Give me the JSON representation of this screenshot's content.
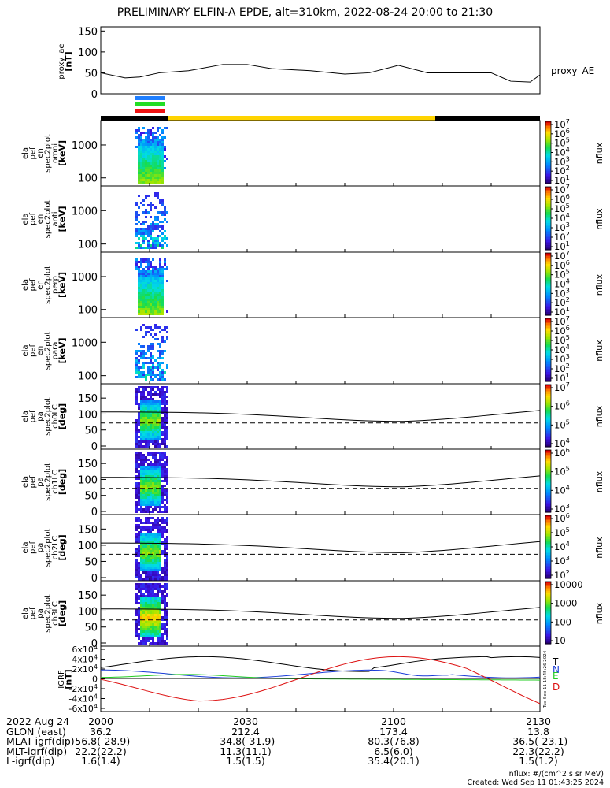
{
  "title": "PRELIMINARY ELFIN-A EPDE, alt=310km, 2022-08-24 20:00 to 21:30",
  "colors": {
    "bar_black": "#000000",
    "bar_yellow": "#ffd400",
    "ind_blue": "#1f7fff",
    "ind_green": "#22dd22",
    "ind_red": "#ee1111",
    "grf_T": "#000000",
    "grf_N": "#1a3cd8",
    "grf_E": "#22cc22",
    "grf_D": "#dd1111"
  },
  "chart_data": [
    {
      "type": "line",
      "name": "proxy_ae",
      "ylabel": [
        "proxy_ae",
        "[nT]"
      ],
      "yticks": [
        "0",
        "50",
        "100",
        "150"
      ],
      "ylim": [
        0,
        160
      ],
      "legend": "proxy_AE",
      "x_minutes": [
        0,
        5,
        8,
        12,
        18,
        25,
        30,
        35,
        43,
        50,
        55,
        61,
        67,
        72,
        80,
        84,
        88,
        90
      ],
      "y": [
        50,
        38,
        40,
        50,
        55,
        70,
        70,
        60,
        55,
        47,
        50,
        68,
        50,
        50,
        50,
        30,
        28,
        45
      ]
    },
    {
      "type": "heatmap",
      "name": "omni-spectrogram",
      "ylabel": [
        "ela",
        "pef",
        "en",
        "spec2plot",
        "omni",
        "[keV]"
      ],
      "yticks": [
        "100",
        "1000"
      ],
      "colorbar": [
        "10^7",
        "10^6",
        "10^5",
        "10^4",
        "10^3",
        "10^2",
        "10^1"
      ],
      "colorbar_label": "nflux"
    },
    {
      "type": "heatmap",
      "name": "anti-spectrogram",
      "ylabel": [
        "ela",
        "pef",
        "en",
        "spec2plot",
        "anti",
        "[keV]"
      ],
      "yticks": [
        "100",
        "1000"
      ],
      "colorbar": [
        "10^7",
        "10^6",
        "10^5",
        "10^4",
        "10^3",
        "10^2",
        "10^1"
      ],
      "colorbar_label": "nflux"
    },
    {
      "type": "heatmap",
      "name": "perp-spectrogram",
      "ylabel": [
        "ela",
        "pef",
        "en",
        "spec2plot",
        "perp",
        "[keV]"
      ],
      "yticks": [
        "100",
        "1000"
      ],
      "colorbar": [
        "10^7",
        "10^6",
        "10^5",
        "10^4",
        "10^3",
        "10^2",
        "10^1"
      ],
      "colorbar_label": "nflux"
    },
    {
      "type": "heatmap",
      "name": "para-spectrogram",
      "ylabel": [
        "ela",
        "pef",
        "en",
        "spec2plot",
        "para",
        "[keV]"
      ],
      "yticks": [
        "100",
        "1000"
      ],
      "colorbar": [
        "10^7",
        "10^6",
        "10^5",
        "10^4",
        "10^3",
        "10^2",
        "10^1"
      ],
      "colorbar_label": "nflux"
    },
    {
      "type": "heatmap",
      "name": "ch0LC",
      "ylabel": [
        "ela",
        "pef",
        "pa",
        "spec2plot",
        "ch0LC",
        "[deg]"
      ],
      "yticks": [
        "0",
        "50",
        "100",
        "150"
      ],
      "colorbar": [
        "10^7",
        "10^6",
        "10^5",
        "10^4"
      ],
      "colorbar_label": "nflux"
    },
    {
      "type": "heatmap",
      "name": "ch1LC",
      "ylabel": [
        "ela",
        "pef",
        "pa",
        "spec2plot",
        "ch1LC",
        "[deg]"
      ],
      "yticks": [
        "0",
        "50",
        "100",
        "150"
      ],
      "colorbar": [
        "10^6",
        "10^5",
        "10^4",
        "10^3"
      ],
      "colorbar_label": "nflux"
    },
    {
      "type": "heatmap",
      "name": "ch2LC",
      "ylabel": [
        "ela",
        "pef",
        "pa",
        "spec2plot",
        "ch2LC",
        "[deg]"
      ],
      "yticks": [
        "0",
        "50",
        "100",
        "150"
      ],
      "colorbar": [
        "10^6",
        "10^5",
        "10^4",
        "10^3",
        "10^2"
      ],
      "colorbar_label": "nflux"
    },
    {
      "type": "heatmap",
      "name": "ch3LC",
      "ylabel": [
        "ela",
        "pef",
        "pa",
        "spec2plot",
        "ch3LC",
        "[deg]"
      ],
      "yticks": [
        "0",
        "50",
        "100",
        "150"
      ],
      "colorbar": [
        "10000",
        "1000",
        "100",
        "10"
      ],
      "colorbar_label": "nflux"
    },
    {
      "type": "line",
      "name": "IGRF",
      "ylabel": [
        "IGRF",
        "[nT]"
      ],
      "yticks": [
        "-6x10^4",
        "-4x10^4",
        "-2x10^4",
        "0",
        "2x10^4",
        "4x10^4",
        "6x10^4"
      ],
      "ylim": [
        -60000,
        60000
      ],
      "legend": [
        "T",
        "N",
        "E",
        "D"
      ],
      "side_note": "Tue Sep 11 18:45:26 2024"
    }
  ],
  "footer": {
    "rows": [
      [
        "2022 Aug 24",
        "2000",
        "2030",
        "2100",
        "2130"
      ],
      [
        "GLON (east)",
        "36.2",
        "212.4",
        "173.4",
        "13.8"
      ],
      [
        "MLAT-igrf(dip)",
        "-56.8(-28.9)",
        "-34.8(-31.9)",
        "80.3(76.8)",
        "-36.5(-23.1)"
      ],
      [
        "MLT-igrf(dip)",
        "22.2(22.2)",
        "11.3(11.1)",
        "6.5(6.0)",
        "22.3(22.2)"
      ],
      [
        "L-igrf(dip)",
        "1.6(1.4)",
        "1.5(1.5)",
        "35.4(20.1)",
        "1.5(1.2)"
      ]
    ],
    "units": "nflux: #/(cm^2 s sr MeV)",
    "created": "Created: Wed Sep 11 01:43:25 2024"
  }
}
